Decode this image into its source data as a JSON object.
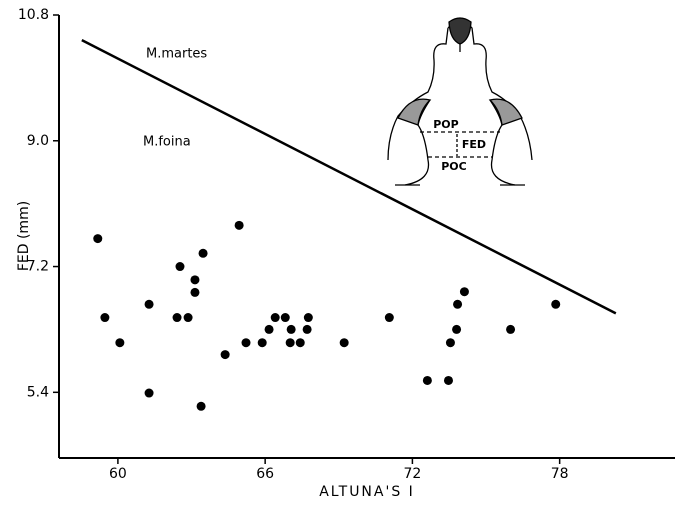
{
  "chart_data": {
    "type": "scatter",
    "x_label": "ALTUNA'S I",
    "y_label": "FED (mm)",
    "xlim": [
      57.6,
      82.7
    ],
    "ylim": [
      4.46,
      10.8
    ],
    "xticks": [
      60,
      66,
      72,
      78
    ],
    "yticks": [
      10.8,
      {
        "value": 9,
        "label": "9.0"
      },
      7.2,
      5.4
    ],
    "color": "#000000",
    "x": [
      59.18,
      59.47,
      60.08,
      61.27,
      61.27,
      62.41,
      62.53,
      62.86,
      63.14,
      63.14,
      63.47,
      63.39,
      64.37,
      64.94,
      65.22,
      65.88,
      66.16,
      66.41,
      66.82,
      67.02,
      67.06,
      67.43,
      67.71,
      67.76,
      69.22,
      71.06,
      72.61,
      73.47,
      73.55,
      73.8,
      73.84,
      74.12,
      76.0,
      77.84
    ],
    "values": [
      7.6,
      6.47,
      6.11,
      6.66,
      5.39,
      6.47,
      7.2,
      6.47,
      7.01,
      6.83,
      7.39,
      5.2,
      5.94,
      7.79,
      6.11,
      6.11,
      6.3,
      6.47,
      6.47,
      6.11,
      6.3,
      6.11,
      6.3,
      6.47,
      6.11,
      6.47,
      5.57,
      5.57,
      6.11,
      6.3,
      6.66,
      6.84,
      6.3,
      6.66
    ],
    "boundary_line": {
      "x": [
        58.53,
        80.29
      ],
      "y": [
        10.44,
        6.53
      ]
    },
    "annotations": [
      "M.martes",
      "M.foina"
    ],
    "inset_labels": [
      "POP",
      "FED",
      "POC"
    ]
  }
}
